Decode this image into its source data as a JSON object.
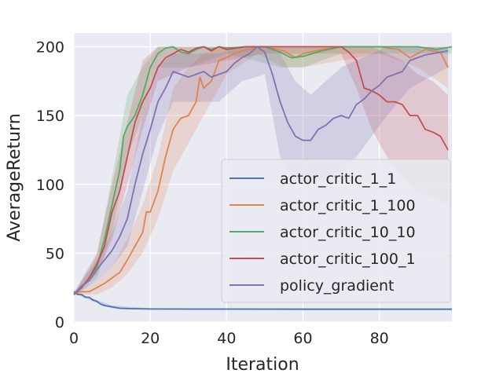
{
  "chart_data": {
    "type": "line",
    "xlabel": "Iteration",
    "ylabel": "AverageReturn",
    "xlim": [
      0,
      99
    ],
    "ylim": [
      0,
      210
    ],
    "xticks": [
      0,
      20,
      40,
      60,
      80
    ],
    "yticks": [
      0,
      50,
      100,
      150,
      200
    ],
    "grid": true,
    "legend_position": "lower-right",
    "series": [
      {
        "name": "actor_critic_1_1",
        "color": "#4c72b0",
        "points": [
          [
            0,
            22
          ],
          [
            1,
            20
          ],
          [
            2,
            20
          ],
          [
            3,
            18
          ],
          [
            4,
            18
          ],
          [
            5,
            16
          ],
          [
            6,
            15
          ],
          [
            7,
            13
          ],
          [
            8,
            12
          ],
          [
            10,
            11
          ],
          [
            12,
            10
          ],
          [
            15,
            9.7
          ],
          [
            20,
            9.5
          ],
          [
            30,
            9.4
          ],
          [
            40,
            9.4
          ],
          [
            60,
            9.3
          ],
          [
            80,
            9.3
          ],
          [
            99,
            9.3
          ]
        ],
        "band": [
          [
            0,
            21,
            23
          ],
          [
            5,
            15,
            17
          ],
          [
            10,
            10,
            12
          ],
          [
            20,
            9,
            10
          ],
          [
            99,
            9,
            10
          ]
        ]
      },
      {
        "name": "actor_critic_1_100",
        "color": "#dd8452",
        "points": [
          [
            0,
            21
          ],
          [
            2,
            22
          ],
          [
            4,
            22
          ],
          [
            6,
            25
          ],
          [
            8,
            28
          ],
          [
            10,
            32
          ],
          [
            12,
            36
          ],
          [
            14,
            45
          ],
          [
            16,
            55
          ],
          [
            18,
            65
          ],
          [
            19,
            80
          ],
          [
            20,
            80
          ],
          [
            22,
            95
          ],
          [
            24,
            120
          ],
          [
            26,
            140
          ],
          [
            28,
            148
          ],
          [
            30,
            150
          ],
          [
            32,
            160
          ],
          [
            33,
            178
          ],
          [
            34,
            170
          ],
          [
            36,
            175
          ],
          [
            38,
            190
          ],
          [
            40,
            192
          ],
          [
            42,
            195
          ],
          [
            44,
            197
          ],
          [
            46,
            198
          ],
          [
            48,
            200
          ],
          [
            50,
            200
          ],
          [
            55,
            197
          ],
          [
            58,
            192
          ],
          [
            60,
            195
          ],
          [
            65,
            198
          ],
          [
            70,
            200
          ],
          [
            75,
            200
          ],
          [
            80,
            200
          ],
          [
            85,
            198
          ],
          [
            88,
            192
          ],
          [
            90,
            195
          ],
          [
            92,
            198
          ],
          [
            94,
            197
          ],
          [
            96,
            196
          ],
          [
            98,
            185
          ]
        ],
        "band": [
          [
            0,
            20,
            22
          ],
          [
            6,
            20,
            30
          ],
          [
            10,
            25,
            40
          ],
          [
            14,
            35,
            60
          ],
          [
            18,
            50,
            85
          ],
          [
            22,
            75,
            120
          ],
          [
            26,
            110,
            170
          ],
          [
            30,
            130,
            185
          ],
          [
            34,
            150,
            195
          ],
          [
            40,
            180,
            200
          ],
          [
            48,
            195,
            200
          ],
          [
            55,
            185,
            200
          ],
          [
            60,
            185,
            200
          ],
          [
            80,
            195,
            200
          ],
          [
            90,
            185,
            200
          ],
          [
            98,
            170,
            200
          ]
        ]
      },
      {
        "name": "actor_critic_10_10",
        "color": "#55a868",
        "points": [
          [
            0,
            20
          ],
          [
            2,
            25
          ],
          [
            4,
            32
          ],
          [
            6,
            40
          ],
          [
            8,
            60
          ],
          [
            10,
            85
          ],
          [
            12,
            110
          ],
          [
            13,
            135
          ],
          [
            14,
            142
          ],
          [
            16,
            150
          ],
          [
            18,
            165
          ],
          [
            20,
            185
          ],
          [
            22,
            195
          ],
          [
            24,
            199
          ],
          [
            26,
            200
          ],
          [
            28,
            196
          ],
          [
            30,
            195
          ],
          [
            32,
            198
          ],
          [
            34,
            200
          ],
          [
            36,
            198
          ],
          [
            38,
            200
          ],
          [
            40,
            199
          ],
          [
            45,
            200
          ],
          [
            50,
            200
          ],
          [
            54,
            196
          ],
          [
            57,
            192
          ],
          [
            60,
            193
          ],
          [
            65,
            197
          ],
          [
            70,
            200
          ],
          [
            80,
            200
          ],
          [
            90,
            200
          ],
          [
            95,
            198
          ],
          [
            99,
            200
          ]
        ],
        "band": [
          [
            0,
            19,
            21
          ],
          [
            6,
            32,
            48
          ],
          [
            10,
            65,
            105
          ],
          [
            14,
            120,
            165
          ],
          [
            18,
            150,
            185
          ],
          [
            22,
            185,
            200
          ],
          [
            30,
            185,
            200
          ],
          [
            40,
            195,
            200
          ],
          [
            54,
            185,
            200
          ],
          [
            60,
            185,
            200
          ],
          [
            70,
            195,
            200
          ],
          [
            99,
            195,
            200
          ]
        ]
      },
      {
        "name": "actor_critic_100_1",
        "color": "#c44e52",
        "points": [
          [
            0,
            20
          ],
          [
            2,
            25
          ],
          [
            4,
            32
          ],
          [
            6,
            42
          ],
          [
            8,
            55
          ],
          [
            10,
            80
          ],
          [
            12,
            95
          ],
          [
            14,
            120
          ],
          [
            16,
            145
          ],
          [
            18,
            160
          ],
          [
            20,
            170
          ],
          [
            22,
            185
          ],
          [
            24,
            192
          ],
          [
            26,
            195
          ],
          [
            28,
            198
          ],
          [
            30,
            196
          ],
          [
            32,
            199
          ],
          [
            34,
            200
          ],
          [
            36,
            197
          ],
          [
            38,
            200
          ],
          [
            40,
            198
          ],
          [
            45,
            200
          ],
          [
            50,
            200
          ],
          [
            55,
            200
          ],
          [
            60,
            200
          ],
          [
            65,
            200
          ],
          [
            70,
            200
          ],
          [
            72,
            196
          ],
          [
            74,
            190
          ],
          [
            75,
            180
          ],
          [
            76,
            170
          ],
          [
            78,
            168
          ],
          [
            80,
            165
          ],
          [
            82,
            160
          ],
          [
            84,
            160
          ],
          [
            86,
            158
          ],
          [
            88,
            150
          ],
          [
            90,
            150
          ],
          [
            92,
            140
          ],
          [
            94,
            138
          ],
          [
            96,
            135
          ],
          [
            98,
            125
          ]
        ],
        "band": [
          [
            0,
            19,
            21
          ],
          [
            6,
            35,
            50
          ],
          [
            10,
            60,
            100
          ],
          [
            14,
            100,
            145
          ],
          [
            18,
            140,
            190
          ],
          [
            22,
            175,
            200
          ],
          [
            30,
            185,
            200
          ],
          [
            50,
            195,
            200
          ],
          [
            70,
            195,
            200
          ],
          [
            74,
            170,
            200
          ],
          [
            78,
            140,
            200
          ],
          [
            82,
            120,
            195
          ],
          [
            86,
            105,
            190
          ],
          [
            90,
            95,
            180
          ],
          [
            94,
            90,
            175
          ],
          [
            98,
            85,
            165
          ]
        ]
      },
      {
        "name": "policy_gradient",
        "color": "#8172b2",
        "points": [
          [
            0,
            20
          ],
          [
            2,
            26
          ],
          [
            4,
            30
          ],
          [
            6,
            38
          ],
          [
            8,
            45
          ],
          [
            10,
            52
          ],
          [
            12,
            62
          ],
          [
            14,
            75
          ],
          [
            16,
            100
          ],
          [
            18,
            122
          ],
          [
            20,
            140
          ],
          [
            22,
            160
          ],
          [
            24,
            170
          ],
          [
            26,
            182
          ],
          [
            28,
            180
          ],
          [
            30,
            178
          ],
          [
            32,
            180
          ],
          [
            34,
            182
          ],
          [
            36,
            178
          ],
          [
            38,
            180
          ],
          [
            40,
            182
          ],
          [
            42,
            188
          ],
          [
            44,
            192
          ],
          [
            46,
            195
          ],
          [
            48,
            200
          ],
          [
            50,
            196
          ],
          [
            52,
            180
          ],
          [
            54,
            160
          ],
          [
            56,
            145
          ],
          [
            58,
            135
          ],
          [
            60,
            132
          ],
          [
            62,
            132
          ],
          [
            64,
            140
          ],
          [
            66,
            143
          ],
          [
            68,
            148
          ],
          [
            70,
            150
          ],
          [
            72,
            148
          ],
          [
            74,
            158
          ],
          [
            76,
            162
          ],
          [
            78,
            168
          ],
          [
            80,
            172
          ],
          [
            82,
            178
          ],
          [
            84,
            180
          ],
          [
            86,
            182
          ],
          [
            88,
            190
          ],
          [
            90,
            192
          ],
          [
            92,
            194
          ],
          [
            94,
            195
          ],
          [
            96,
            196
          ],
          [
            98,
            197
          ]
        ],
        "band": [
          [
            0,
            19,
            21
          ],
          [
            6,
            30,
            45
          ],
          [
            10,
            40,
            65
          ],
          [
            14,
            55,
            95
          ],
          [
            18,
            95,
            150
          ],
          [
            22,
            135,
            185
          ],
          [
            26,
            160,
            195
          ],
          [
            30,
            160,
            195
          ],
          [
            38,
            160,
            195
          ],
          [
            44,
            175,
            200
          ],
          [
            50,
            180,
            200
          ],
          [
            54,
            120,
            195
          ],
          [
            58,
            100,
            175
          ],
          [
            62,
            100,
            165
          ],
          [
            66,
            105,
            175
          ],
          [
            70,
            110,
            185
          ],
          [
            74,
            120,
            190
          ],
          [
            78,
            135,
            195
          ],
          [
            82,
            150,
            200
          ],
          [
            88,
            170,
            200
          ],
          [
            98,
            185,
            200
          ]
        ]
      }
    ]
  }
}
